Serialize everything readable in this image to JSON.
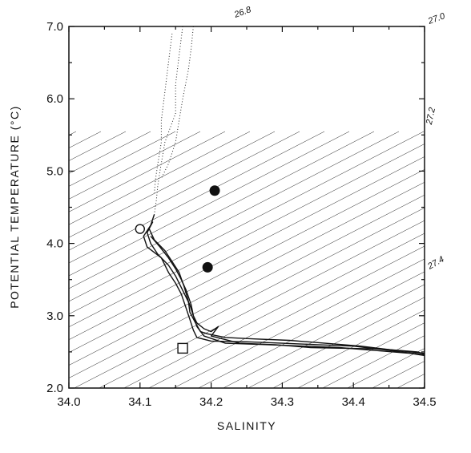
{
  "chart_data": {
    "type": "scatter",
    "xlabel": "SALINITY",
    "ylabel": "POTENTIAL TEMPERATURE (°C)",
    "xlim": [
      34.0,
      34.5
    ],
    "ylim": [
      2.0,
      7.0
    ],
    "x_ticks": [
      "34.0",
      "34.1",
      "34.2",
      "34.3",
      "34.4",
      "34.5"
    ],
    "y_ticks": [
      "2.0",
      "3.0",
      "4.0",
      "5.0",
      "6.0",
      "7.0"
    ],
    "grid": false,
    "isopycnal_labels": [
      "26.8",
      "27.0",
      "27.2",
      "27.4"
    ],
    "series": [
      {
        "style": "dotted",
        "profiles": [
          [
            [
              34.16,
              7.0
            ],
            [
              34.155,
              6.6
            ],
            [
              34.15,
              6.2
            ],
            [
              34.15,
              5.8
            ],
            [
              34.135,
              5.4
            ],
            [
              34.128,
              5.0
            ],
            [
              34.125,
              4.8
            ],
            [
              34.123,
              4.6
            ],
            [
              34.12,
              4.4
            ]
          ],
          [
            [
              34.145,
              6.9
            ],
            [
              34.14,
              6.5
            ],
            [
              34.135,
              6.1
            ],
            [
              34.13,
              5.7
            ],
            [
              34.13,
              5.4
            ],
            [
              34.125,
              5.1
            ],
            [
              34.122,
              4.9
            ],
            [
              34.12,
              4.7
            ]
          ],
          [
            [
              34.175,
              7.0
            ],
            [
              34.172,
              6.7
            ],
            [
              34.168,
              6.4
            ],
            [
              34.16,
              6.0
            ],
            [
              34.155,
              5.7
            ],
            [
              34.15,
              5.4
            ],
            [
              34.14,
              5.1
            ],
            [
              34.13,
              4.9
            ]
          ]
        ]
      },
      {
        "style": "solid",
        "profiles": [
          [
            [
              34.12,
              4.4
            ],
            [
              34.115,
              4.25
            ],
            [
              34.105,
              4.1
            ],
            [
              34.11,
              3.95
            ],
            [
              34.13,
              3.8
            ],
            [
              34.14,
              3.6
            ],
            [
              34.15,
              3.45
            ],
            [
              34.158,
              3.3
            ],
            [
              34.165,
              3.1
            ],
            [
              34.17,
              2.95
            ],
            [
              34.175,
              2.8
            ],
            [
              34.18,
              2.7
            ],
            [
              34.2,
              2.65
            ],
            [
              34.25,
              2.64
            ],
            [
              34.3,
              2.62
            ],
            [
              34.35,
              2.6
            ],
            [
              34.4,
              2.58
            ],
            [
              34.45,
              2.52
            ],
            [
              34.5,
              2.46
            ]
          ],
          [
            [
              34.118,
              4.3
            ],
            [
              34.11,
              4.15
            ],
            [
              34.115,
              4.0
            ],
            [
              34.125,
              3.85
            ],
            [
              34.14,
              3.7
            ],
            [
              34.15,
              3.55
            ],
            [
              34.16,
              3.35
            ],
            [
              34.17,
              3.15
            ],
            [
              34.175,
              3.0
            ],
            [
              34.18,
              2.85
            ],
            [
              34.19,
              2.72
            ],
            [
              34.22,
              2.62
            ],
            [
              34.28,
              2.6
            ],
            [
              34.33,
              2.58
            ],
            [
              34.38,
              2.56
            ],
            [
              34.43,
              2.52
            ],
            [
              34.48,
              2.48
            ],
            [
              34.5,
              2.45
            ]
          ],
          [
            [
              34.113,
              4.2
            ],
            [
              34.12,
              4.05
            ],
            [
              34.135,
              3.9
            ],
            [
              34.145,
              3.75
            ],
            [
              34.155,
              3.6
            ],
            [
              34.162,
              3.4
            ],
            [
              34.168,
              3.2
            ],
            [
              34.17,
              3.05
            ],
            [
              34.178,
              2.9
            ],
            [
              34.185,
              2.78
            ],
            [
              34.195,
              2.75
            ],
            [
              34.22,
              2.7
            ],
            [
              34.26,
              2.68
            ],
            [
              34.31,
              2.66
            ],
            [
              34.36,
              2.62
            ],
            [
              34.41,
              2.58
            ],
            [
              34.46,
              2.52
            ],
            [
              34.5,
              2.48
            ]
          ],
          [
            [
              34.115,
              4.1
            ],
            [
              34.128,
              3.95
            ],
            [
              34.14,
              3.8
            ],
            [
              34.15,
              3.65
            ],
            [
              34.158,
              3.5
            ],
            [
              34.165,
              3.35
            ],
            [
              34.172,
              3.15
            ],
            [
              34.175,
              3.0
            ],
            [
              34.18,
              2.9
            ],
            [
              34.19,
              2.82
            ],
            [
              34.2,
              2.78
            ],
            [
              34.21,
              2.85
            ],
            [
              34.2,
              2.72
            ],
            [
              34.24,
              2.62
            ],
            [
              34.29,
              2.6
            ],
            [
              34.34,
              2.56
            ],
            [
              34.39,
              2.55
            ],
            [
              34.44,
              2.54
            ],
            [
              34.49,
              2.5
            ],
            [
              34.5,
              2.47
            ]
          ]
        ]
      },
      {
        "marker": "filled-circle",
        "points": [
          [
            34.205,
            4.73
          ],
          [
            34.195,
            3.67
          ]
        ]
      },
      {
        "marker": "open-circle",
        "points": [
          [
            34.1,
            4.2
          ]
        ]
      },
      {
        "marker": "open-square",
        "points": [
          [
            34.16,
            2.55
          ]
        ]
      }
    ]
  }
}
